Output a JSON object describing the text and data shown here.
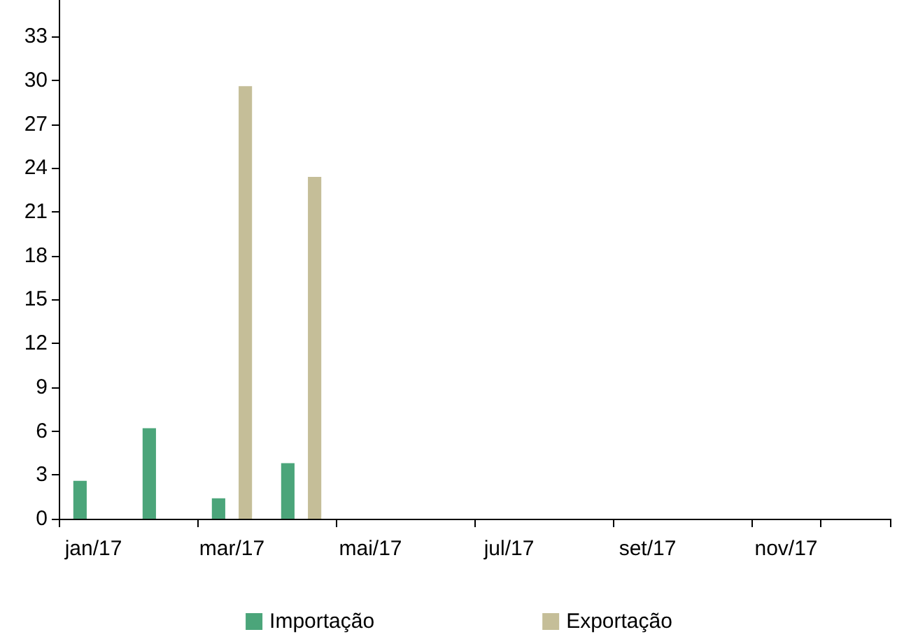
{
  "chart_data": {
    "type": "bar",
    "categories": [
      "jan/17",
      null,
      "mar/17",
      null,
      "mai/17",
      null,
      "jul/17",
      null,
      "set/17",
      null,
      "nov/17",
      null
    ],
    "series": [
      {
        "name": "Importação",
        "color": "#4ba57a",
        "values": [
          2.6,
          6.2,
          1.4,
          3.8,
          null,
          null,
          null,
          null,
          null,
          null,
          null,
          null
        ]
      },
      {
        "name": "Exportação",
        "color": "#c5be98",
        "values": [
          null,
          null,
          29.6,
          23.4,
          null,
          null,
          null,
          null,
          null,
          null,
          null,
          null
        ]
      }
    ],
    "ylim": [
      0,
      35.5
    ],
    "yticks": [
      0,
      3,
      6,
      9,
      12,
      15,
      18,
      21,
      24,
      27,
      30,
      33
    ],
    "grid": false,
    "legend": "bottom"
  }
}
